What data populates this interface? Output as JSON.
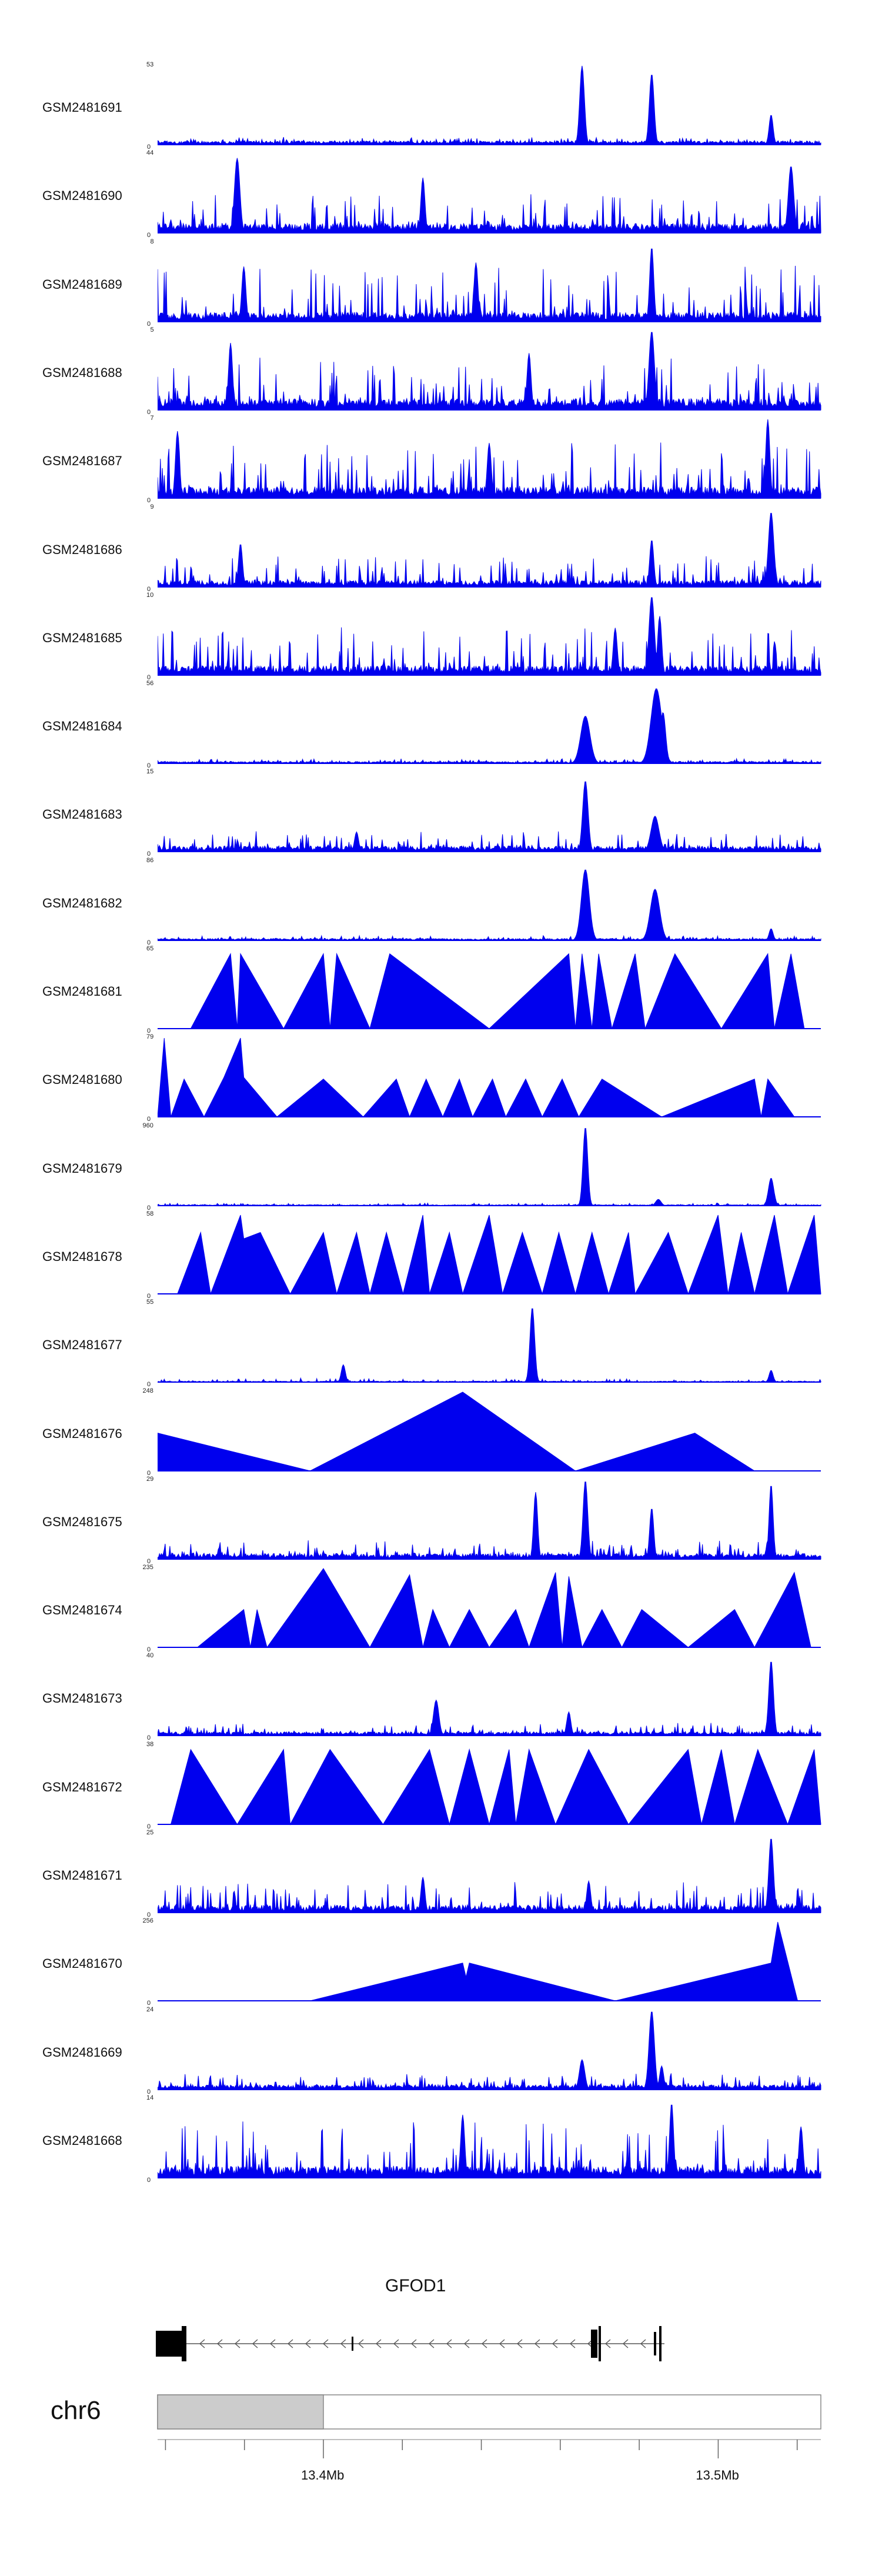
{
  "chart_data": {
    "type": "genome-browser-area",
    "region": {
      "chromosome": "chr6",
      "start_mb": 13.358,
      "end_mb": 13.526
    },
    "axis": {
      "ticks_mb": [
        13.4,
        13.5
      ],
      "tick_labels": [
        "13.4Mb",
        "13.5Mb"
      ]
    },
    "gene": {
      "name": "GFOD1",
      "strand": "-"
    },
    "track_color": "#0000ee",
    "tracks": [
      {
        "name": "GSM2481691",
        "max": "53",
        "min": "0",
        "style": "dense",
        "baseline": 0.04,
        "noise": 0.05,
        "peaks": [
          [
            0.64,
            1.0,
            0.0035
          ],
          [
            0.745,
            0.9,
            0.0035
          ],
          [
            0.925,
            0.38,
            0.003
          ]
        ]
      },
      {
        "name": "GSM2481690",
        "max": "44",
        "min": "0",
        "style": "dense",
        "baseline": 0.1,
        "noise": 0.45,
        "peaks": [
          [
            0.12,
            0.95,
            0.004
          ],
          [
            0.955,
            0.85,
            0.004
          ],
          [
            0.4,
            0.7,
            0.003
          ]
        ]
      },
      {
        "name": "GSM2481689",
        "max": "8",
        "min": "0",
        "style": "dense",
        "baseline": 0.1,
        "noise": 0.6,
        "peaks": [
          [
            0.745,
            0.95,
            0.003
          ],
          [
            0.48,
            0.75,
            0.003
          ],
          [
            0.13,
            0.7,
            0.003
          ]
        ]
      },
      {
        "name": "GSM2481688",
        "max": "5",
        "min": "0",
        "style": "dense",
        "baseline": 0.12,
        "noise": 0.55,
        "peaks": [
          [
            0.745,
            1.0,
            0.004
          ],
          [
            0.11,
            0.85,
            0.003
          ],
          [
            0.56,
            0.72,
            0.003
          ]
        ]
      },
      {
        "name": "GSM2481687",
        "max": "7",
        "min": "0",
        "style": "dense",
        "baseline": 0.12,
        "noise": 0.6,
        "peaks": [
          [
            0.92,
            1.0,
            0.003
          ],
          [
            0.03,
            0.85,
            0.003
          ],
          [
            0.5,
            0.7,
            0.003
          ]
        ]
      },
      {
        "name": "GSM2481686",
        "max": "9",
        "min": "0",
        "style": "dense",
        "baseline": 0.07,
        "noise": 0.35,
        "peaks": [
          [
            0.925,
            0.95,
            0.004
          ],
          [
            0.745,
            0.6,
            0.003
          ],
          [
            0.125,
            0.55,
            0.003
          ]
        ]
      },
      {
        "name": "GSM2481685",
        "max": "10",
        "min": "0",
        "style": "dense",
        "baseline": 0.1,
        "noise": 0.5,
        "peaks": [
          [
            0.745,
            1.0,
            0.004
          ],
          [
            0.757,
            0.75,
            0.003
          ],
          [
            0.69,
            0.6,
            0.003
          ]
        ]
      },
      {
        "name": "GSM2481684",
        "max": "56",
        "min": "0",
        "style": "dense",
        "baseline": 0.02,
        "noise": 0.04,
        "peaks": [
          [
            0.645,
            0.6,
            0.007
          ],
          [
            0.752,
            0.95,
            0.008
          ],
          [
            0.762,
            0.65,
            0.004
          ]
        ]
      },
      {
        "name": "GSM2481683",
        "max": "15",
        "min": "0",
        "style": "dense",
        "baseline": 0.06,
        "noise": 0.2,
        "peaks": [
          [
            0.645,
            0.9,
            0.004
          ],
          [
            0.75,
            0.45,
            0.006
          ],
          [
            0.3,
            0.25,
            0.003
          ]
        ]
      },
      {
        "name": "GSM2481682",
        "max": "86",
        "min": "0",
        "style": "dense",
        "baseline": 0.02,
        "noise": 0.04,
        "peaks": [
          [
            0.645,
            0.9,
            0.006
          ],
          [
            0.75,
            0.65,
            0.007
          ],
          [
            0.925,
            0.15,
            0.003
          ]
        ]
      },
      {
        "name": "GSM2481681",
        "max": "65",
        "min": "0",
        "style": "sparse",
        "points": [
          [
            0.05,
            0
          ],
          [
            0.11,
            0.95
          ],
          [
            0.12,
            0
          ],
          [
            0.125,
            0.95
          ],
          [
            0.19,
            0
          ],
          [
            0.25,
            0.95
          ],
          [
            0.26,
            0
          ],
          [
            0.27,
            0.95
          ],
          [
            0.32,
            0
          ],
          [
            0.35,
            0.95
          ],
          [
            0.5,
            0
          ],
          [
            0.62,
            0.95
          ],
          [
            0.63,
            0
          ],
          [
            0.64,
            0.95
          ],
          [
            0.655,
            0
          ],
          [
            0.665,
            0.95
          ],
          [
            0.685,
            0
          ],
          [
            0.72,
            0.95
          ],
          [
            0.735,
            0
          ],
          [
            0.78,
            0.95
          ],
          [
            0.85,
            0
          ],
          [
            0.92,
            0.95
          ],
          [
            0.93,
            0
          ],
          [
            0.955,
            0.95
          ],
          [
            0.975,
            0
          ]
        ]
      },
      {
        "name": "GSM2481680",
        "max": "79",
        "min": "0",
        "style": "sparse",
        "points": [
          [
            0.0,
            0
          ],
          [
            0.01,
            1.0
          ],
          [
            0.02,
            0
          ],
          [
            0.04,
            0.48
          ],
          [
            0.07,
            0
          ],
          [
            0.1,
            0.5
          ],
          [
            0.125,
            1.0
          ],
          [
            0.13,
            0.5
          ],
          [
            0.18,
            0
          ],
          [
            0.25,
            0.48
          ],
          [
            0.31,
            0
          ],
          [
            0.36,
            0.48
          ],
          [
            0.38,
            0
          ],
          [
            0.405,
            0.48
          ],
          [
            0.43,
            0
          ],
          [
            0.455,
            0.48
          ],
          [
            0.475,
            0
          ],
          [
            0.505,
            0.48
          ],
          [
            0.525,
            0
          ],
          [
            0.555,
            0.48
          ],
          [
            0.58,
            0
          ],
          [
            0.61,
            0.48
          ],
          [
            0.635,
            0
          ],
          [
            0.67,
            0.48
          ],
          [
            0.76,
            0
          ],
          [
            0.9,
            0.48
          ],
          [
            0.91,
            0
          ],
          [
            0.92,
            0.48
          ],
          [
            0.96,
            0
          ]
        ]
      },
      {
        "name": "GSM2481679",
        "max": "960",
        "min": "0",
        "style": "dense",
        "baseline": 0.01,
        "noise": 0.025,
        "peaks": [
          [
            0.645,
            1.0,
            0.0035
          ],
          [
            0.925,
            0.35,
            0.004
          ],
          [
            0.755,
            0.08,
            0.004
          ]
        ]
      },
      {
        "name": "GSM2481678",
        "max": "58",
        "min": "0",
        "style": "sparse",
        "points": [
          [
            0.03,
            0
          ],
          [
            0.065,
            0.78
          ],
          [
            0.08,
            0
          ],
          [
            0.115,
            0.78
          ],
          [
            0.125,
            1.0
          ],
          [
            0.13,
            0.7
          ],
          [
            0.155,
            0.78
          ],
          [
            0.2,
            0
          ],
          [
            0.25,
            0.78
          ],
          [
            0.27,
            0
          ],
          [
            0.3,
            0.78
          ],
          [
            0.32,
            0
          ],
          [
            0.345,
            0.78
          ],
          [
            0.37,
            0
          ],
          [
            0.4,
            1.0
          ],
          [
            0.41,
            0
          ],
          [
            0.44,
            0.78
          ],
          [
            0.46,
            0
          ],
          [
            0.5,
            1.0
          ],
          [
            0.52,
            0
          ],
          [
            0.55,
            0.78
          ],
          [
            0.58,
            0
          ],
          [
            0.605,
            0.78
          ],
          [
            0.63,
            0
          ],
          [
            0.655,
            0.78
          ],
          [
            0.68,
            0
          ],
          [
            0.71,
            0.78
          ],
          [
            0.72,
            0
          ],
          [
            0.77,
            0.78
          ],
          [
            0.8,
            0
          ],
          [
            0.845,
            1.0
          ],
          [
            0.86,
            0
          ],
          [
            0.88,
            0.78
          ],
          [
            0.9,
            0
          ],
          [
            0.93,
            1.0
          ],
          [
            0.95,
            0
          ],
          [
            0.99,
            1.0
          ],
          [
            1.0,
            0
          ]
        ]
      },
      {
        "name": "GSM2481677",
        "max": "55",
        "min": "0",
        "style": "dense",
        "baseline": 0.01,
        "noise": 0.04,
        "peaks": [
          [
            0.565,
            0.95,
            0.0035
          ],
          [
            0.28,
            0.22,
            0.003
          ],
          [
            0.925,
            0.15,
            0.003
          ]
        ]
      },
      {
        "name": "GSM2481676",
        "max": "248",
        "min": "0",
        "style": "sparse",
        "points": [
          [
            0.0,
            0
          ],
          [
            0.0,
            0.48
          ],
          [
            0.23,
            0
          ],
          [
            0.46,
            1.0
          ],
          [
            0.63,
            0
          ],
          [
            0.81,
            0.48
          ],
          [
            0.9,
            0
          ]
        ]
      },
      {
        "name": "GSM2481675",
        "max": "29",
        "min": "0",
        "style": "dense",
        "baseline": 0.06,
        "noise": 0.18,
        "peaks": [
          [
            0.645,
            1.0,
            0.0035
          ],
          [
            0.57,
            0.85,
            0.003
          ],
          [
            0.925,
            0.95,
            0.003
          ],
          [
            0.745,
            0.65,
            0.003
          ]
        ]
      },
      {
        "name": "GSM2481674",
        "max": "235",
        "min": "0",
        "style": "sparse",
        "points": [
          [
            0.06,
            0
          ],
          [
            0.13,
            0.48
          ],
          [
            0.14,
            0
          ],
          [
            0.15,
            0.48
          ],
          [
            0.165,
            0
          ],
          [
            0.25,
            1.0
          ],
          [
            0.32,
            0
          ],
          [
            0.38,
            0.92
          ],
          [
            0.4,
            0
          ],
          [
            0.415,
            0.48
          ],
          [
            0.44,
            0
          ],
          [
            0.47,
            0.48
          ],
          [
            0.5,
            0
          ],
          [
            0.54,
            0.48
          ],
          [
            0.56,
            0
          ],
          [
            0.6,
            0.95
          ],
          [
            0.61,
            0
          ],
          [
            0.62,
            0.9
          ],
          [
            0.64,
            0
          ],
          [
            0.67,
            0.48
          ],
          [
            0.7,
            0
          ],
          [
            0.73,
            0.48
          ],
          [
            0.8,
            0
          ],
          [
            0.87,
            0.48
          ],
          [
            0.9,
            0
          ],
          [
            0.96,
            0.95
          ],
          [
            0.985,
            0
          ]
        ]
      },
      {
        "name": "GSM2481673",
        "max": "40",
        "min": "0",
        "style": "dense",
        "baseline": 0.04,
        "noise": 0.12,
        "peaks": [
          [
            0.925,
            0.95,
            0.0035
          ],
          [
            0.42,
            0.45,
            0.004
          ],
          [
            0.62,
            0.3,
            0.003
          ]
        ]
      },
      {
        "name": "GSM2481672",
        "max": "38",
        "min": "0",
        "style": "sparse",
        "points": [
          [
            0.02,
            0
          ],
          [
            0.05,
            0.95
          ],
          [
            0.12,
            0
          ],
          [
            0.19,
            0.95
          ],
          [
            0.2,
            0
          ],
          [
            0.26,
            0.95
          ],
          [
            0.34,
            0
          ],
          [
            0.41,
            0.95
          ],
          [
            0.44,
            0
          ],
          [
            0.47,
            0.95
          ],
          [
            0.5,
            0
          ],
          [
            0.53,
            0.95
          ],
          [
            0.54,
            0
          ],
          [
            0.56,
            0.95
          ],
          [
            0.6,
            0
          ],
          [
            0.65,
            0.95
          ],
          [
            0.71,
            0
          ],
          [
            0.8,
            0.95
          ],
          [
            0.82,
            0
          ],
          [
            0.85,
            0.95
          ],
          [
            0.87,
            0
          ],
          [
            0.905,
            0.95
          ],
          [
            0.95,
            0
          ],
          [
            0.99,
            0.95
          ],
          [
            1.0,
            0
          ]
        ]
      },
      {
        "name": "GSM2481671",
        "max": "25",
        "min": "0",
        "style": "dense",
        "baseline": 0.08,
        "noise": 0.3,
        "peaks": [
          [
            0.925,
            0.95,
            0.0035
          ],
          [
            0.4,
            0.45,
            0.003
          ],
          [
            0.65,
            0.4,
            0.003
          ]
        ]
      },
      {
        "name": "GSM2481670",
        "max": "256",
        "min": "0",
        "style": "sparse",
        "points": [
          [
            0.23,
            0
          ],
          [
            0.46,
            0.48
          ],
          [
            0.465,
            0.3
          ],
          [
            0.47,
            0.48
          ],
          [
            0.69,
            0
          ],
          [
            0.925,
            0.48
          ],
          [
            0.935,
            1.0
          ],
          [
            0.965,
            0
          ]
        ]
      },
      {
        "name": "GSM2481669",
        "max": "24",
        "min": "0",
        "style": "dense",
        "baseline": 0.05,
        "noise": 0.15,
        "peaks": [
          [
            0.745,
            1.0,
            0.004
          ],
          [
            0.64,
            0.38,
            0.004
          ],
          [
            0.76,
            0.3,
            0.003
          ]
        ]
      },
      {
        "name": "GSM2481668",
        "max": "14",
        "min": "0",
        "style": "dense",
        "baseline": 0.12,
        "noise": 0.6,
        "peaks": [
          [
            0.775,
            0.95,
            0.003
          ],
          [
            0.46,
            0.8,
            0.003
          ],
          [
            0.97,
            0.65,
            0.003
          ]
        ]
      }
    ]
  }
}
